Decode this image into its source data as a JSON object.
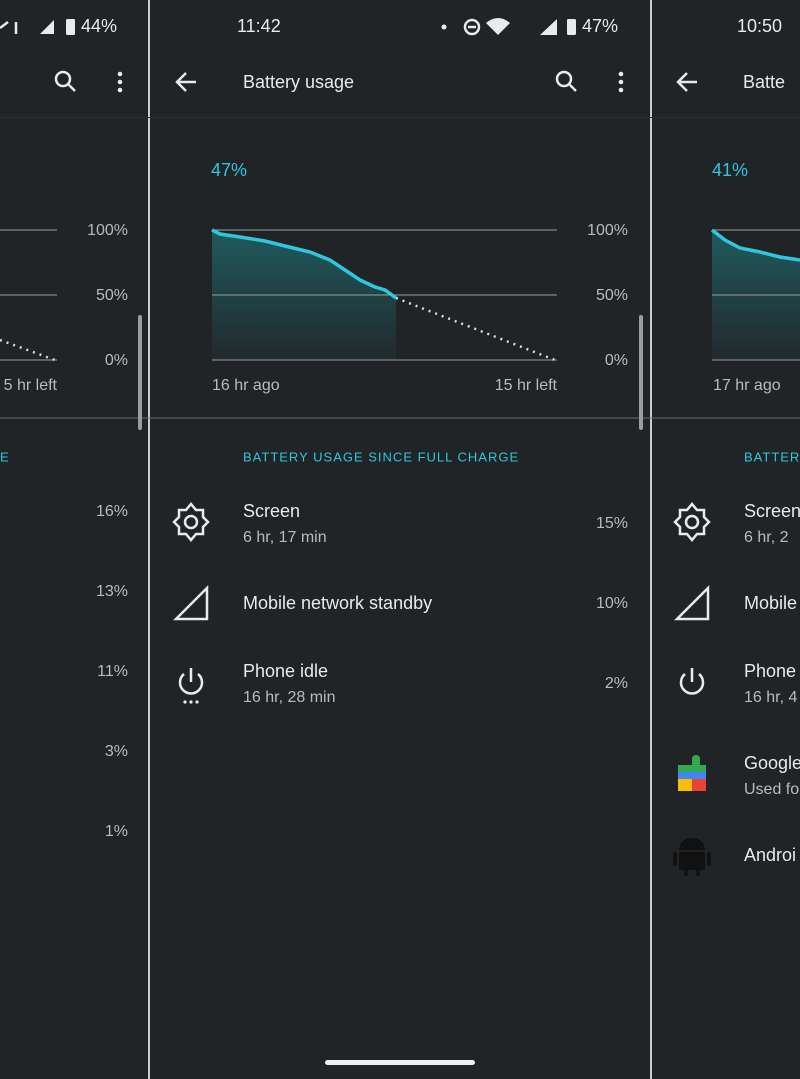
{
  "panels": [
    {
      "status": {
        "battery": "44%"
      },
      "chart": {
        "axis": [
          "100%",
          "50%",
          "0%"
        ],
        "end_label": "5 hr left"
      },
      "section": "E",
      "items": [
        {
          "percent": "16%"
        },
        {
          "percent": "13%"
        },
        {
          "percent": "11%"
        },
        {
          "percent": "3%"
        },
        {
          "percent": "1%"
        }
      ]
    },
    {
      "status": {
        "time": "11:42",
        "battery": "47%"
      },
      "title": "Battery usage",
      "level": "47%",
      "chart": {
        "axis": [
          "100%",
          "50%",
          "0%"
        ],
        "start_label": "16 hr ago",
        "end_label": "15 hr left"
      },
      "section": "BATTERY USAGE SINCE FULL CHARGE",
      "items": [
        {
          "name": "Screen",
          "detail": "6 hr, 17 min",
          "percent": "15%"
        },
        {
          "name": "Mobile network standby",
          "percent": "10%"
        },
        {
          "name": "Phone idle",
          "detail": "16 hr, 28 min",
          "percent": "2%"
        }
      ]
    },
    {
      "status": {
        "time": "10:50"
      },
      "title": "Batte",
      "level": "41%",
      "chart": {
        "start_label": "17 hr ago"
      },
      "section": "BATTER",
      "items": [
        {
          "name": "Screen",
          "detail": "6 hr, 2"
        },
        {
          "name": "Mobile"
        },
        {
          "name": "Phone",
          "detail": "16 hr, 4"
        },
        {
          "name": "Google",
          "detail": "Used fo"
        },
        {
          "name": "Androi"
        }
      ]
    }
  ]
}
